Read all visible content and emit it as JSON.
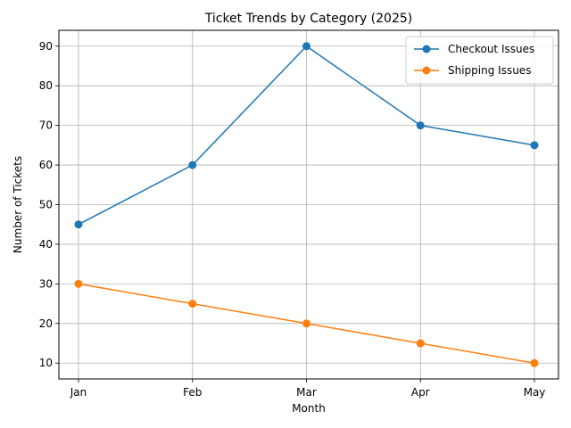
{
  "chart_data": {
    "type": "line",
    "title": "Ticket Trends by Category (2025)",
    "xlabel": "Month",
    "ylabel": "Number of Tickets",
    "categories": [
      "Jan",
      "Feb",
      "Mar",
      "Apr",
      "May"
    ],
    "ylim": [
      6,
      94
    ],
    "yticks": [
      10,
      20,
      30,
      40,
      50,
      60,
      70,
      80,
      90
    ],
    "grid": true,
    "legend_position": "top-right",
    "series": [
      {
        "name": "Checkout Issues",
        "color": "#1f77b4",
        "values": [
          45,
          60,
          90,
          70,
          65
        ]
      },
      {
        "name": "Shipping Issues",
        "color": "#ff7f0e",
        "values": [
          30,
          25,
          20,
          15,
          10
        ]
      }
    ]
  }
}
